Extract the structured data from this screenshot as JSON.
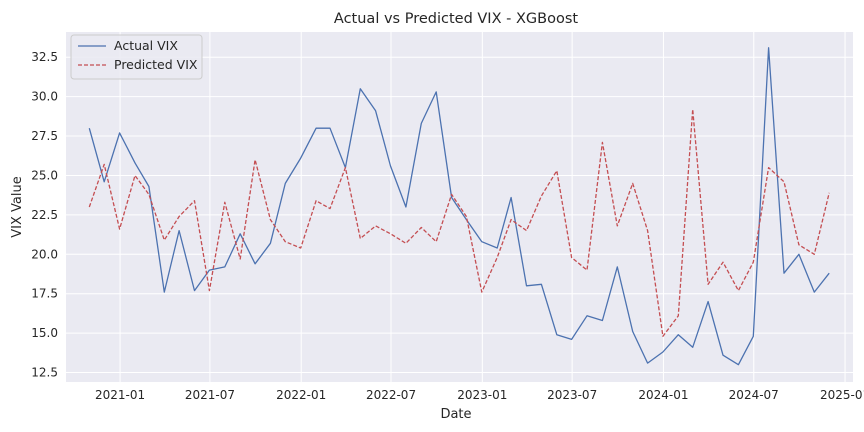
{
  "chart_data": {
    "type": "line",
    "title": "Actual vs Predicted VIX - XGBoost",
    "xlabel": "Date",
    "ylabel": "VIX Value",
    "x_ticks": [
      "2021-01",
      "2021-07",
      "2022-01",
      "2022-07",
      "2023-01",
      "2023-07",
      "2024-01",
      "2024-07",
      "2025-01"
    ],
    "y_ticks": [
      "12.5",
      "15.0",
      "17.5",
      "20.0",
      "22.5",
      "25.0",
      "27.5",
      "30.0",
      "32.5"
    ],
    "xlim": [
      "2020-09-14",
      "2025-01-17"
    ],
    "ylim": [
      11.9,
      34.1
    ],
    "grid": true,
    "legend_position": "top-left",
    "x": [
      "2020-10-31",
      "2020-11-30",
      "2020-12-31",
      "2021-01-31",
      "2021-02-28",
      "2021-03-31",
      "2021-04-30",
      "2021-05-31",
      "2021-06-30",
      "2021-07-31",
      "2021-08-31",
      "2021-09-30",
      "2021-10-31",
      "2021-11-30",
      "2021-12-31",
      "2022-01-31",
      "2022-02-28",
      "2022-03-31",
      "2022-04-30",
      "2022-05-31",
      "2022-06-30",
      "2022-07-31",
      "2022-08-31",
      "2022-09-30",
      "2022-10-31",
      "2022-11-30",
      "2022-12-31",
      "2023-01-31",
      "2023-02-28",
      "2023-03-31",
      "2023-04-30",
      "2023-05-31",
      "2023-06-30",
      "2023-07-31",
      "2023-08-31",
      "2023-09-30",
      "2023-10-31",
      "2023-11-30",
      "2023-12-31",
      "2024-01-31",
      "2024-02-29",
      "2024-03-31",
      "2024-04-30",
      "2024-05-31",
      "2024-06-30",
      "2024-07-31",
      "2024-08-31",
      "2024-09-30",
      "2024-10-31",
      "2024-11-30"
    ],
    "series": [
      {
        "name": "Actual VIX",
        "color": "#4c72b0",
        "dash": "solid",
        "values": [
          28.0,
          24.6,
          27.7,
          25.8,
          24.3,
          17.6,
          21.5,
          17.7,
          19.0,
          19.2,
          21.3,
          19.4,
          20.7,
          24.5,
          26.1,
          28.0,
          28.0,
          25.5,
          30.5,
          29.1,
          25.6,
          23.0,
          28.3,
          30.3,
          23.6,
          22.2,
          20.8,
          20.4,
          23.6,
          18.0,
          18.1,
          14.9,
          14.6,
          16.1,
          15.8,
          19.2,
          15.1,
          13.1,
          13.8,
          14.9,
          14.1,
          17.0,
          13.6,
          13.0,
          14.8,
          33.1,
          18.8,
          20.0,
          17.6,
          18.8
        ]
      },
      {
        "name": "Predicted VIX",
        "color": "#c44e52",
        "dash": "dashed",
        "values": [
          23.0,
          25.7,
          21.6,
          25.0,
          23.8,
          20.9,
          22.4,
          23.4,
          17.7,
          23.3,
          19.7,
          26.0,
          22.2,
          20.8,
          20.4,
          23.4,
          22.9,
          25.5,
          21.0,
          21.8,
          21.3,
          20.7,
          21.7,
          20.8,
          23.8,
          22.4,
          17.6,
          19.8,
          22.2,
          21.5,
          23.7,
          25.3,
          19.8,
          19.0,
          27.1,
          21.8,
          24.5,
          21.5,
          14.8,
          16.1,
          29.2,
          18.1,
          19.5,
          17.7,
          19.5,
          25.5,
          24.6,
          20.6,
          20.0,
          23.9
        ]
      }
    ]
  }
}
